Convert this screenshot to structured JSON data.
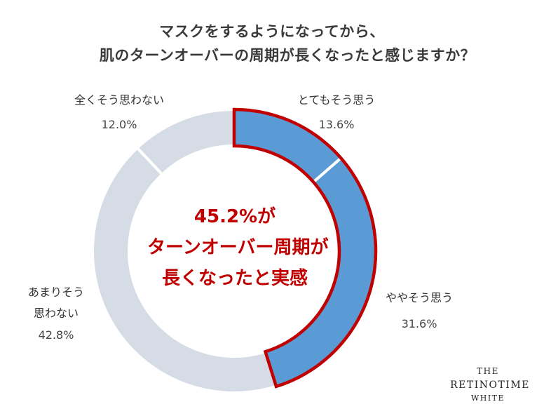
{
  "title": {
    "line1": "マスクをするようになってから、",
    "line2": "肌のターンオーバーの周期が長くなったと感じますか？"
  },
  "center": {
    "line1": "45.2%が",
    "line2": "ターンオーバー周期が",
    "line3": "長くなったと実感"
  },
  "labels": {
    "totemo": "とてもそう思う",
    "yaya": "ややそう思う",
    "amari_1": "あまりそう",
    "amari_2": "思わない",
    "mattaku": "全くそう思わない"
  },
  "brand": {
    "line1": "THE",
    "line2": "RETINOTIME",
    "line3": "WHITE"
  },
  "colors": {
    "highlight": "#5b9bd5",
    "other": "#d6dce5",
    "outline": "#c00000",
    "text": "#3a3a3a"
  },
  "chart_data": {
    "type": "pie",
    "style": "donut",
    "title": "マスクをするようになってから、肌のターンオーバーの周期が長くなったと感じますか？",
    "categories": [
      "とてもそう思う",
      "ややそう思う",
      "あまりそう思わない",
      "全くそう思わない"
    ],
    "values": [
      13.6,
      31.6,
      42.8,
      12.0
    ],
    "value_labels": [
      "13.6%",
      "31.6%",
      "42.8%",
      "12.0%"
    ],
    "highlighted": [
      0,
      1
    ],
    "highlight_total": 45.2
  }
}
